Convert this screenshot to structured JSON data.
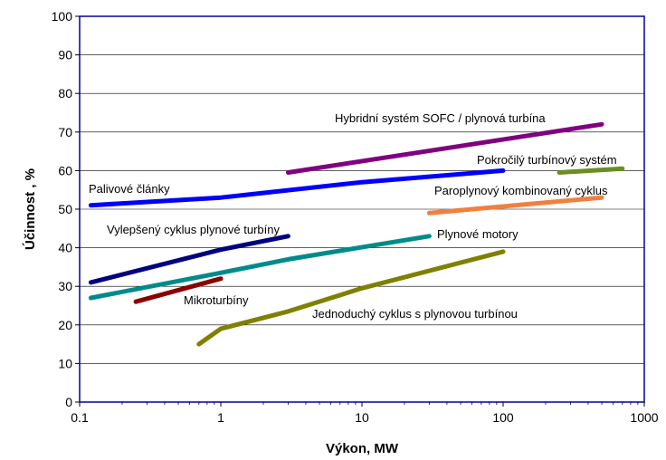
{
  "chart_data": {
    "type": "line",
    "xlabel": "Výkon, MW",
    "ylabel": "Účinnost , %",
    "x_scale": "log",
    "xlim": [
      0.1,
      1000
    ],
    "ylim": [
      0,
      100
    ],
    "x_ticks": [
      "0.1",
      "1",
      "10",
      "100",
      "1000"
    ],
    "y_ticks": [
      "0",
      "10",
      "20",
      "30",
      "40",
      "50",
      "60",
      "70",
      "80",
      "90",
      "100"
    ],
    "grid": "horizontal",
    "series": [
      {
        "name": "Hybridní systém SOFC / plynová turbína",
        "color": "#800080",
        "points": [
          [
            3,
            59.5
          ],
          [
            500,
            72
          ]
        ]
      },
      {
        "name": "Pokročilý turbínový systém",
        "color": "#6b8e23",
        "points": [
          [
            250,
            59.5
          ],
          [
            700,
            60.5
          ]
        ]
      },
      {
        "name": "Palivové články",
        "color": "#0000ff",
        "points": [
          [
            0.12,
            51
          ],
          [
            1,
            53
          ],
          [
            10,
            57
          ],
          [
            100,
            60
          ]
        ]
      },
      {
        "name": "Paroplynový kombinovaný cyklus",
        "color": "#f08040",
        "points": [
          [
            30,
            49
          ],
          [
            500,
            53
          ]
        ]
      },
      {
        "name": "Vylepšený cyklus plynové turbíny",
        "color": "#000080",
        "points": [
          [
            0.12,
            31
          ],
          [
            1,
            39.5
          ],
          [
            3,
            43
          ]
        ]
      },
      {
        "name": "Plynové motory",
        "color": "#008b8b",
        "points": [
          [
            0.12,
            27
          ],
          [
            1,
            33.5
          ],
          [
            3,
            37
          ],
          [
            30,
            43
          ]
        ]
      },
      {
        "name": "Mikroturbíny",
        "color": "#8b0000",
        "points": [
          [
            0.25,
            26
          ],
          [
            1,
            32
          ]
        ]
      },
      {
        "name": "Jednoduchý cyklus s plynovou turbínou",
        "color": "#808000",
        "points": [
          [
            0.7,
            15
          ],
          [
            1,
            19
          ],
          [
            3,
            23.5
          ],
          [
            10,
            29.5
          ],
          [
            100,
            39
          ]
        ]
      }
    ]
  }
}
